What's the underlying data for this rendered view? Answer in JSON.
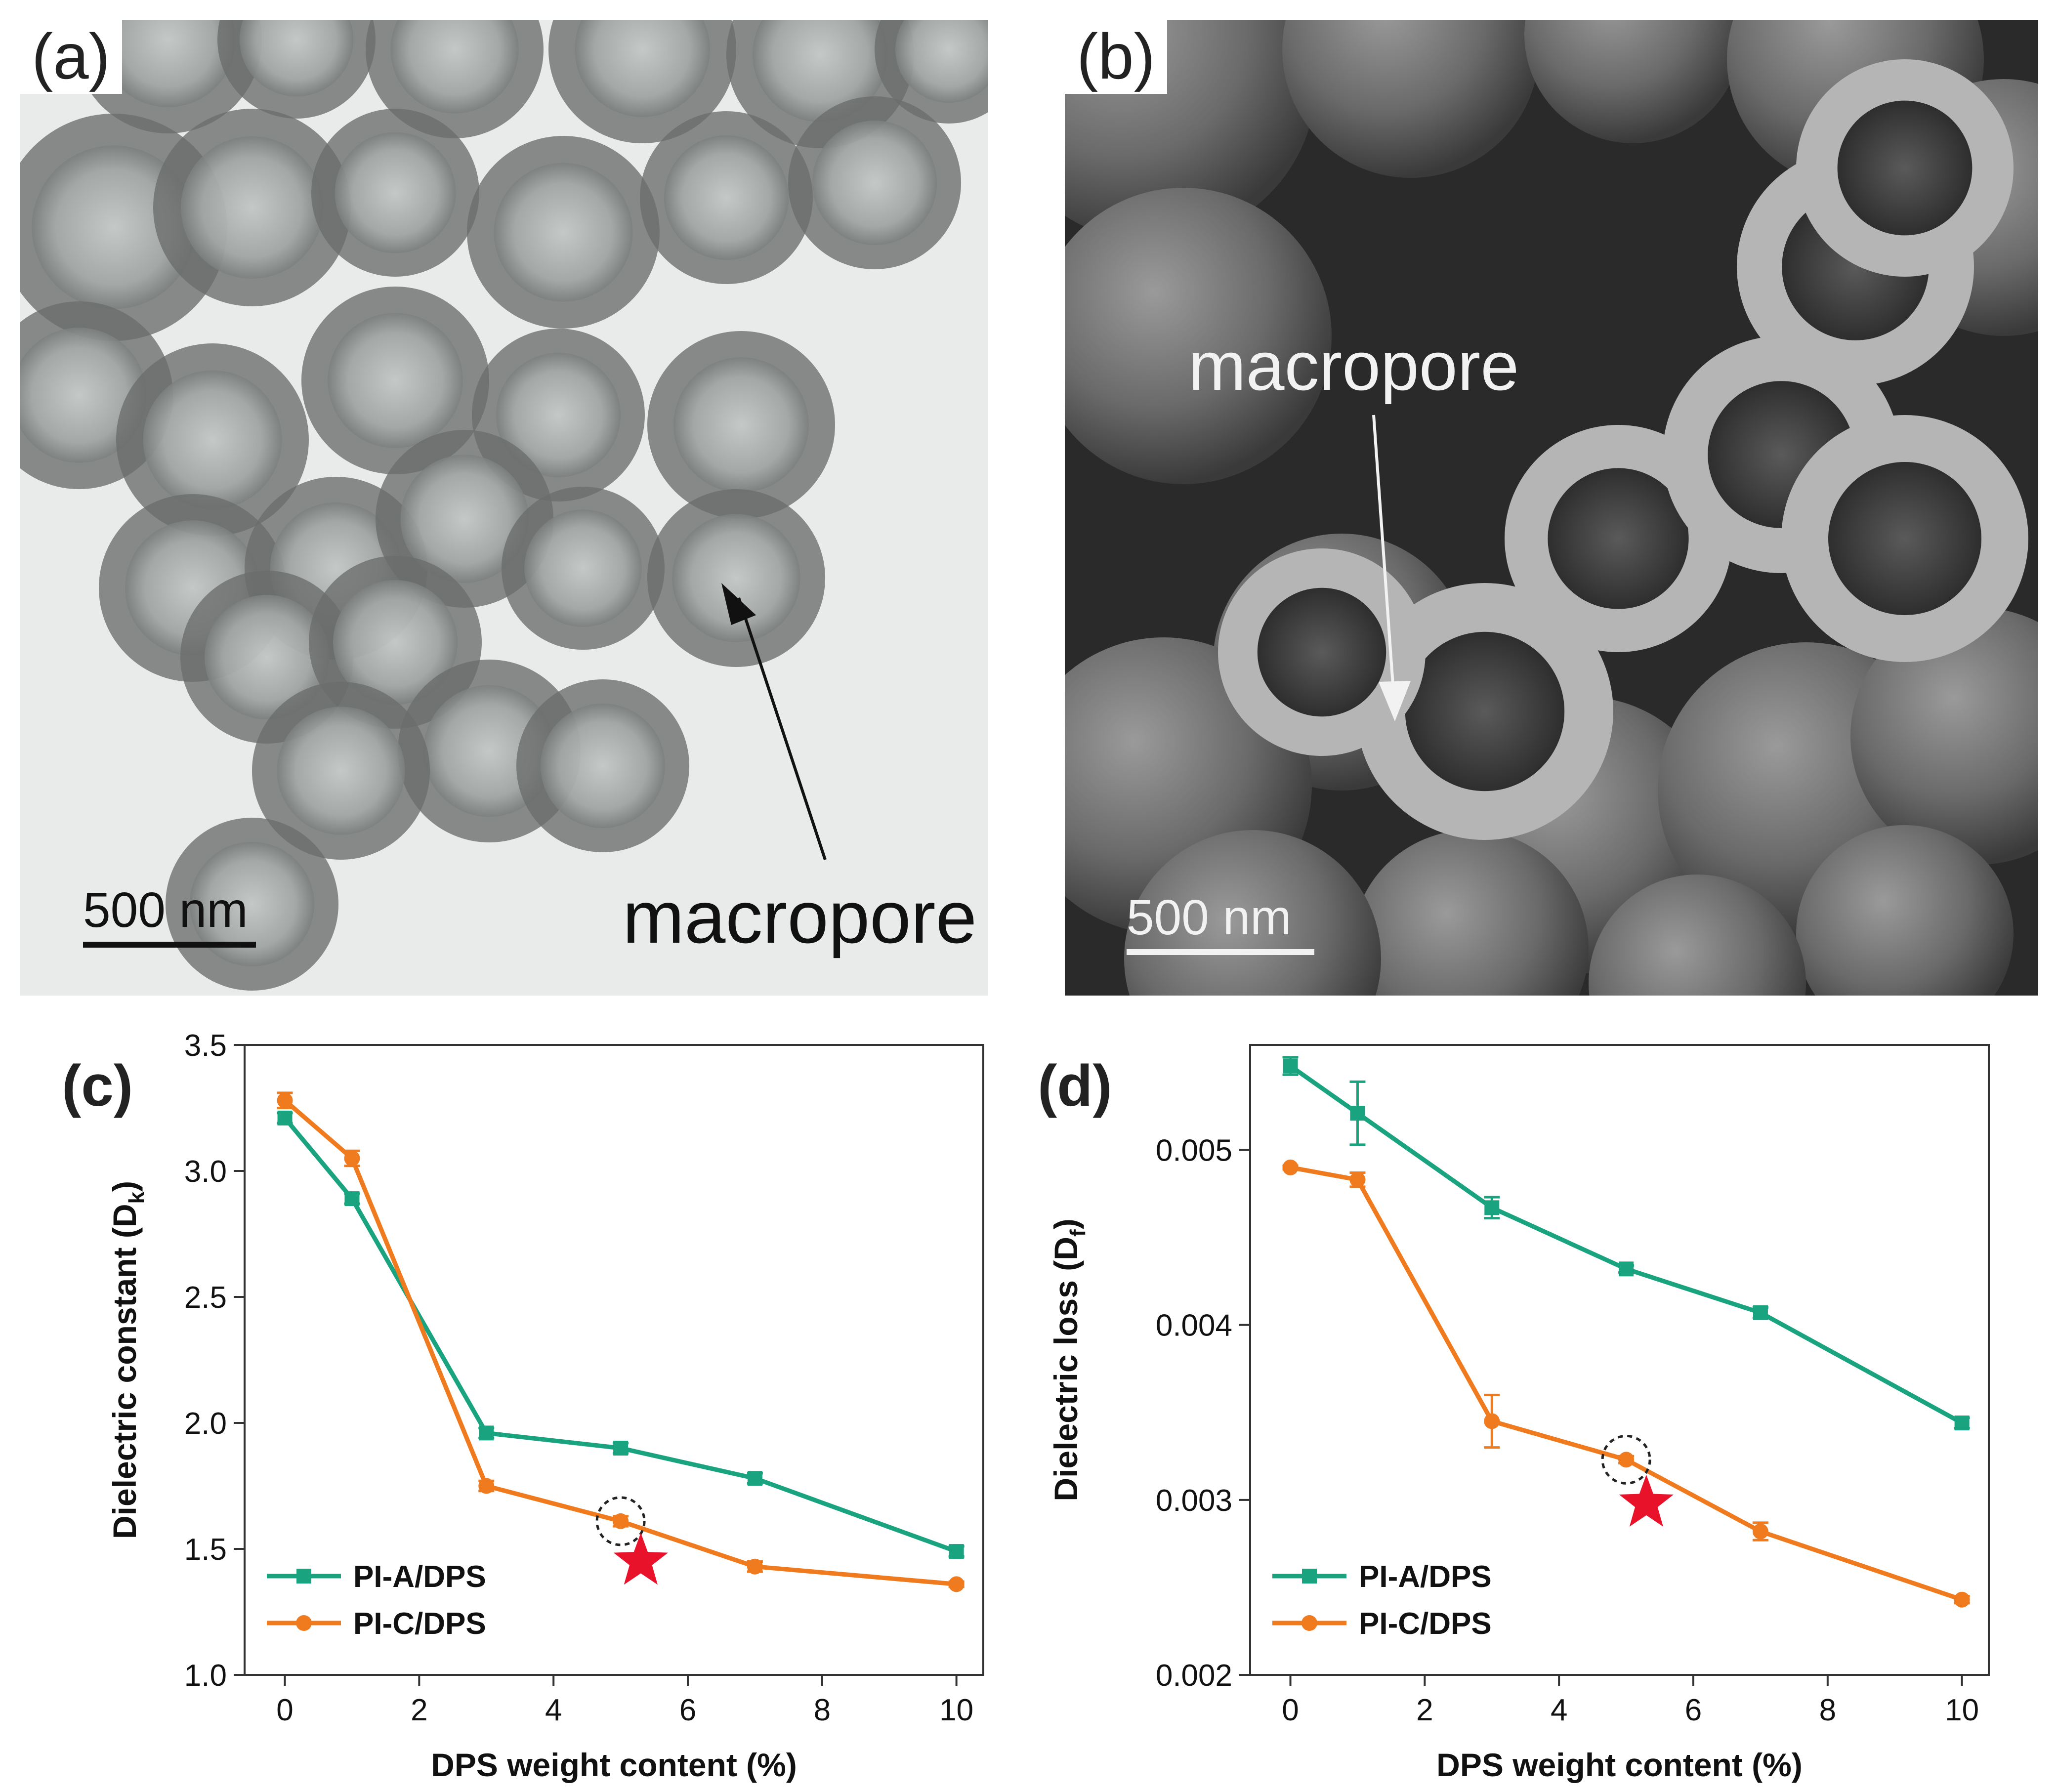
{
  "panels": {
    "a": {
      "label": "(a)",
      "scale_bar": "500 nm",
      "annotation": "macropore"
    },
    "b": {
      "label": "(b)",
      "scale_bar": "500 nm",
      "annotation": "macropore"
    },
    "c": {
      "label": "(c)"
    },
    "d": {
      "label": "(d)"
    }
  },
  "colors": {
    "PI-A/DPS": "#1aa37f",
    "PI-C/DPS": "#f07a1e",
    "star": "#e8132b"
  },
  "chart_data": [
    {
      "id": "c",
      "type": "line",
      "title": "",
      "xlabel": "DPS weight content (%)",
      "ylabel": "Dielectric constant (D",
      "ylabel_sub": "k",
      "ylabel_end": ")",
      "xlim": [
        -0.6,
        10.4
      ],
      "ylim": [
        1.0,
        3.5
      ],
      "xticks": [
        0,
        2,
        4,
        6,
        8,
        10
      ],
      "yticks": [
        1.0,
        1.5,
        2.0,
        2.5,
        3.0,
        3.5
      ],
      "ytick_labels": [
        "1.0",
        "1.5",
        "2.0",
        "2.5",
        "3.0",
        "3.5"
      ],
      "legend_position": "bottom-left",
      "highlight": {
        "x": 5.0,
        "y": 1.61
      },
      "star": {
        "x": 5.3,
        "y": 1.45
      },
      "series": [
        {
          "name": "PI-A/DPS",
          "marker": "square",
          "x": [
            0,
            1,
            3,
            5,
            7,
            10
          ],
          "y": [
            3.21,
            2.89,
            1.96,
            1.9,
            1.78,
            1.49
          ],
          "err": [
            0.02,
            0.02,
            0.02,
            0.02,
            0.02,
            0.02
          ]
        },
        {
          "name": "PI-C/DPS",
          "marker": "circle",
          "x": [
            0,
            1,
            3,
            5,
            7,
            10
          ],
          "y": [
            3.28,
            3.05,
            1.75,
            1.61,
            1.43,
            1.36
          ],
          "err": [
            0.03,
            0.03,
            0.02,
            0.02,
            0.02,
            0.01
          ]
        }
      ]
    },
    {
      "id": "d",
      "type": "line",
      "title": "",
      "xlabel": "DPS weight content (%)",
      "ylabel": "Dielectric loss (D",
      "ylabel_sub": "f",
      "ylabel_end": ")",
      "xlim": [
        -0.6,
        10.4
      ],
      "ylim": [
        0.002,
        0.0056
      ],
      "xticks": [
        0,
        2,
        4,
        6,
        8,
        10
      ],
      "yticks": [
        0.002,
        0.003,
        0.004,
        0.005
      ],
      "ytick_labels": [
        "0.002",
        "0.003",
        "0.004",
        "0.005"
      ],
      "legend_position": "bottom-left",
      "highlight": {
        "x": 5.0,
        "y": 0.00323
      },
      "star": {
        "x": 5.3,
        "y": 0.00298
      },
      "series": [
        {
          "name": "PI-A/DPS",
          "marker": "square",
          "x": [
            0,
            1,
            3,
            5,
            7,
            10
          ],
          "y": [
            0.00548,
            0.00521,
            0.00467,
            0.00432,
            0.00407,
            0.00344
          ],
          "err": [
            5e-05,
            0.00018,
            6e-05,
            2e-05,
            3e-05,
            3e-05
          ]
        },
        {
          "name": "PI-C/DPS",
          "marker": "circle",
          "x": [
            0,
            1,
            3,
            5,
            7,
            10
          ],
          "y": [
            0.0049,
            0.00483,
            0.00345,
            0.00323,
            0.00282,
            0.00243
          ],
          "err": [
            1e-05,
            4e-05,
            0.00015,
            2e-05,
            5e-05,
            2e-05
          ]
        }
      ]
    }
  ]
}
